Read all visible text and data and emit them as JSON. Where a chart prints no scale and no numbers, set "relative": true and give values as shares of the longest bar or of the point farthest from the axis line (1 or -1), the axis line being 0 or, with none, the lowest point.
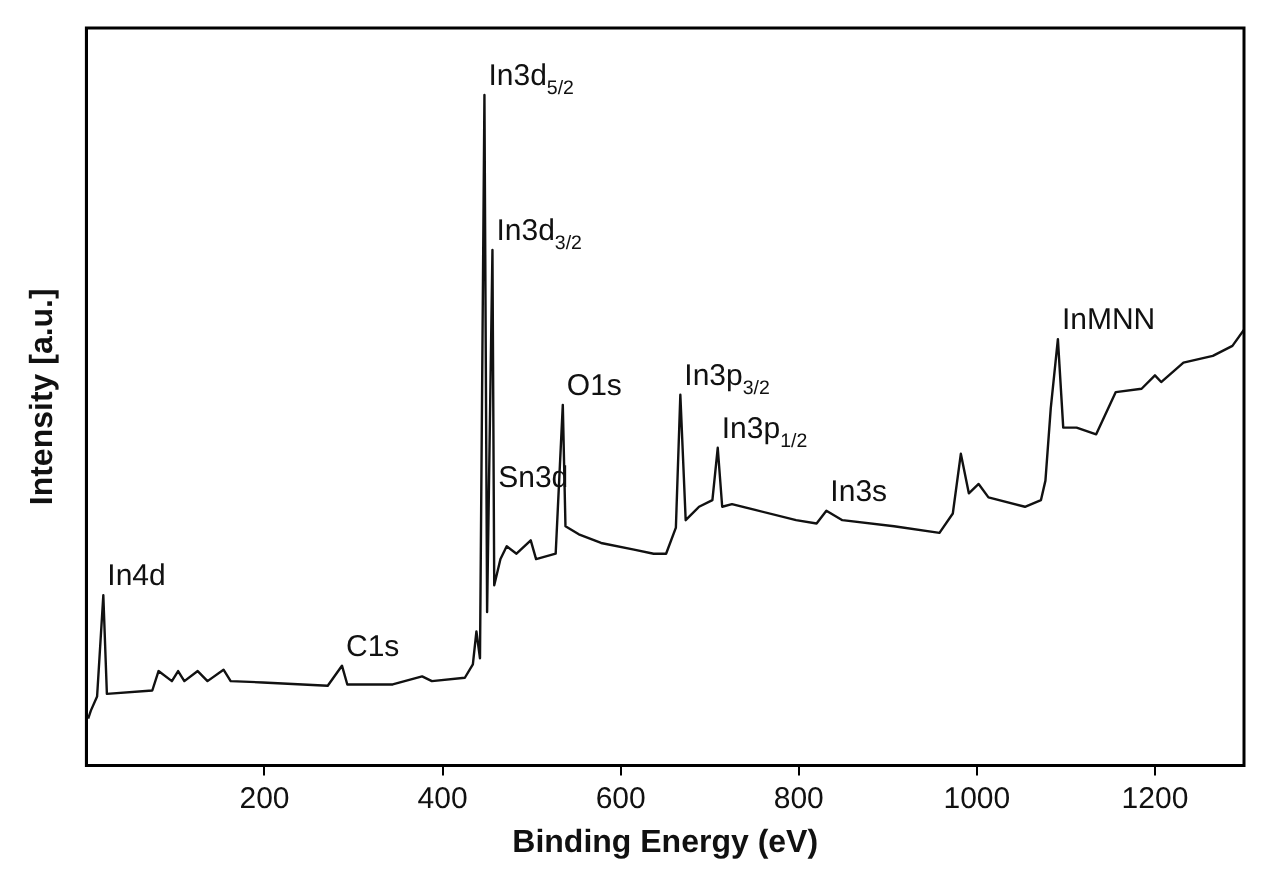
{
  "chart_data": {
    "type": "line",
    "xlabel": "Binding Energy (eV)",
    "ylabel": "Intensity [a.u.]",
    "relative": true,
    "xlim": [
      0,
      1300
    ],
    "xticks": [
      200,
      400,
      600,
      800,
      1000,
      1200
    ],
    "series": [
      {
        "color": "#111111",
        "x": [
          2,
          5,
          12,
          19,
          23,
          74,
          81,
          96,
          103,
          110,
          125,
          136,
          154,
          162,
          198,
          271,
          287,
          293,
          344,
          377,
          388,
          425,
          434,
          438,
          442,
          447,
          450,
          456,
          458,
          465,
          472,
          483,
          499,
          505,
          527,
          535,
          538,
          553,
          578,
          615,
          637,
          651,
          662,
          667,
          673,
          688,
          703,
          709,
          714,
          725,
          797,
          820,
          831,
          849,
          907,
          958,
          973,
          982,
          991,
          1002,
          1013,
          1054,
          1072,
          1077,
          1083,
          1091,
          1097,
          1112,
          1134,
          1156,
          1185,
          1200,
          1207,
          1232,
          1265,
          1287,
          1300
        ],
        "values": [
          0.07,
          0.082,
          0.103,
          0.254,
          0.107,
          0.112,
          0.141,
          0.126,
          0.141,
          0.126,
          0.141,
          0.126,
          0.143,
          0.126,
          0.124,
          0.119,
          0.149,
          0.121,
          0.121,
          0.133,
          0.126,
          0.131,
          0.151,
          0.2,
          0.16,
          1,
          0.229,
          0.769,
          0.269,
          0.308,
          0.327,
          0.316,
          0.336,
          0.308,
          0.316,
          0.538,
          0.357,
          0.345,
          0.332,
          0.322,
          0.316,
          0.316,
          0.355,
          0.553,
          0.366,
          0.386,
          0.396,
          0.474,
          0.386,
          0.39,
          0.366,
          0.361,
          0.38,
          0.366,
          0.357,
          0.347,
          0.376,
          0.465,
          0.406,
          0.42,
          0.4,
          0.386,
          0.396,
          0.425,
          0.533,
          0.636,
          0.504,
          0.504,
          0.494,
          0.557,
          0.562,
          0.582,
          0.572,
          0.601,
          0.611,
          0.626,
          0.65
        ]
      }
    ],
    "annotations": [
      {
        "text": "In4d",
        "x": 19,
        "y": 0.254
      },
      {
        "text": "C1s",
        "x": 287,
        "y": 0.149
      },
      {
        "text": "In3d$_{5/2}$",
        "x": 447,
        "y": 1
      },
      {
        "text": "In3d$_{3/2}$",
        "x": 456,
        "y": 0.769
      },
      {
        "text": "Sn3d",
        "x": 458,
        "y": 0.4
      },
      {
        "text": "O1s",
        "x": 535,
        "y": 0.538
      },
      {
        "text": "In3p$_{3/2}$",
        "x": 667,
        "y": 0.553
      },
      {
        "text": "In3p$_{1/2}$",
        "x": 709,
        "y": 0.474
      },
      {
        "text": "In3s",
        "x": 831,
        "y": 0.38
      },
      {
        "text": "InMNN",
        "x": 1091,
        "y": 0.636
      }
    ]
  }
}
